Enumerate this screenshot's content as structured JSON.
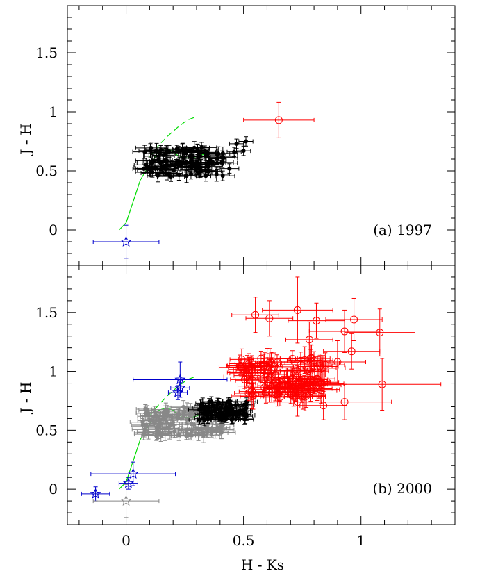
{
  "colors": {
    "black": "#000000",
    "red": "#ff0000",
    "blue": "#0000cc",
    "green": "#00dd00",
    "gray": "#888888"
  },
  "chart_data": [
    {
      "type": "scatter",
      "panel": "a",
      "annotation": "(a) 1997",
      "xlabel": "H - Ks",
      "ylabel": "J - H",
      "xlim": [
        -0.25,
        1.4
      ],
      "ylim": [
        -0.3,
        1.9
      ],
      "x_ticks": [
        "0",
        "0.5",
        "1"
      ],
      "y_ticks": [
        "0",
        "0.5",
        "1",
        "1.5"
      ],
      "series": [
        {
          "marker": "filled-circle",
          "color": "black",
          "cluster": {
            "count": 110,
            "x_range": [
              0.07,
              0.42
            ],
            "y_range": [
              0.45,
              0.7
            ],
            "xerr": 0.06,
            "yerr": 0.05
          },
          "points": [
            {
              "x": 0.44,
              "y": 0.52,
              "xerr": 0.04,
              "yerr": 0.04
            },
            {
              "x": 0.46,
              "y": 0.66,
              "xerr": 0.03,
              "yerr": 0.04
            },
            {
              "x": 0.47,
              "y": 0.73,
              "xerr": 0.03,
              "yerr": 0.04
            },
            {
              "x": 0.5,
              "y": 0.67,
              "xerr": 0.03,
              "yerr": 0.04
            },
            {
              "x": 0.51,
              "y": 0.75,
              "xerr": 0.03,
              "yerr": 0.04
            },
            {
              "x": 0.32,
              "y": 0.5,
              "xerr": 0.05,
              "yerr": 0.05
            }
          ]
        },
        {
          "marker": "open-circle",
          "color": "red",
          "points": [
            {
              "x": 0.65,
              "y": 0.93,
              "xerr": 0.15,
              "yerr": 0.15
            }
          ]
        },
        {
          "marker": "open-star",
          "color": "blue",
          "points": [
            {
              "x": 0.0,
              "y": -0.1,
              "xerr": 0.14,
              "yerr": 0.14
            }
          ]
        }
      ],
      "curves": [
        {
          "style": "solid",
          "color": "green",
          "x": [
            -0.03,
            0.0,
            0.02,
            0.04,
            0.06,
            0.09,
            0.12,
            0.14,
            0.17,
            0.2,
            0.22,
            0.25,
            0.28,
            0.3,
            0.33
          ],
          "y": [
            0.0,
            0.06,
            0.18,
            0.3,
            0.42,
            0.52,
            0.61,
            0.67,
            0.69,
            0.67,
            0.63,
            0.61,
            0.61,
            0.62,
            0.64
          ]
        },
        {
          "style": "dashed",
          "color": "green",
          "x": [
            0.1,
            0.14,
            0.18,
            0.22,
            0.26,
            0.3
          ],
          "y": [
            0.62,
            0.72,
            0.8,
            0.87,
            0.93,
            0.96
          ]
        }
      ]
    },
    {
      "type": "scatter",
      "panel": "b",
      "annotation": "(b) 2000",
      "xlabel": "H - Ks",
      "ylabel": "J - H",
      "xlim": [
        -0.25,
        1.4
      ],
      "ylim": [
        -0.3,
        1.9
      ],
      "x_ticks": [
        "0",
        "0.5",
        "1"
      ],
      "y_ticks": [
        "0",
        "0.5",
        "1",
        "1.5"
      ],
      "series": [
        {
          "marker": "filled-circle",
          "color": "gray",
          "cluster": {
            "count": 110,
            "x_range": [
              0.07,
              0.42
            ],
            "y_range": [
              0.45,
              0.7
            ],
            "xerr": 0.06,
            "yerr": 0.05
          },
          "points": []
        },
        {
          "marker": "filled-circle",
          "color": "black",
          "cluster": {
            "count": 80,
            "x_range": [
              0.31,
              0.52
            ],
            "y_range": [
              0.58,
              0.75
            ],
            "xerr": 0.04,
            "yerr": 0.04
          },
          "points": []
        },
        {
          "marker": "open-circle",
          "color": "red",
          "cluster": {
            "count": 110,
            "x_range": [
              0.47,
              0.85
            ],
            "y_range": [
              0.78,
              1.12
            ],
            "xerr": 0.08,
            "yerr": 0.1
          },
          "points": [
            {
              "x": 0.55,
              "y": 1.48,
              "xerr": 0.1,
              "yerr": 0.15
            },
            {
              "x": 0.61,
              "y": 1.45,
              "xerr": 0.1,
              "yerr": 0.15
            },
            {
              "x": 0.73,
              "y": 1.52,
              "xerr": 0.15,
              "yerr": 0.28
            },
            {
              "x": 0.81,
              "y": 1.43,
              "xerr": 0.12,
              "yerr": 0.15
            },
            {
              "x": 0.97,
              "y": 1.44,
              "xerr": 0.12,
              "yerr": 0.18
            },
            {
              "x": 0.78,
              "y": 1.27,
              "xerr": 0.1,
              "yerr": 0.15
            },
            {
              "x": 0.93,
              "y": 1.34,
              "xerr": 0.15,
              "yerr": 0.18
            },
            {
              "x": 1.08,
              "y": 1.33,
              "xerr": 0.15,
              "yerr": 0.2
            },
            {
              "x": 0.96,
              "y": 1.17,
              "xerr": 0.12,
              "yerr": 0.15
            },
            {
              "x": 1.09,
              "y": 0.89,
              "xerr": 0.25,
              "yerr": 0.22
            },
            {
              "x": 0.93,
              "y": 0.74,
              "xerr": 0.2,
              "yerr": 0.15
            },
            {
              "x": 0.84,
              "y": 0.71,
              "xerr": 0.1,
              "yerr": 0.12
            },
            {
              "x": 0.73,
              "y": 0.74,
              "xerr": 0.1,
              "yerr": 0.12
            },
            {
              "x": 0.9,
              "y": 1.08,
              "xerr": 0.12,
              "yerr": 0.18
            }
          ]
        },
        {
          "marker": "open-star",
          "color": "blue",
          "points": [
            {
              "x": -0.13,
              "y": -0.04,
              "xerr": 0.06,
              "yerr": 0.06
            },
            {
              "x": 0.01,
              "y": 0.05,
              "xerr": 0.04,
              "yerr": 0.05
            },
            {
              "x": 0.03,
              "y": 0.13,
              "xerr": 0.18,
              "yerr": 0.1
            },
            {
              "x": 0.22,
              "y": 0.82,
              "xerr": 0.04,
              "yerr": 0.06
            },
            {
              "x": 0.23,
              "y": 0.86,
              "xerr": 0.04,
              "yerr": 0.06
            },
            {
              "x": 0.23,
              "y": 0.93,
              "xerr": 0.2,
              "yerr": 0.15
            }
          ]
        },
        {
          "marker": "open-star",
          "color": "gray",
          "points": [
            {
              "x": 0.0,
              "y": -0.1,
              "xerr": 0.14,
              "yerr": 0.14
            }
          ]
        }
      ],
      "curves": [
        {
          "style": "solid",
          "color": "green",
          "x": [
            -0.03,
            0.0,
            0.02,
            0.04,
            0.06,
            0.09,
            0.12,
            0.14,
            0.17,
            0.2,
            0.22,
            0.25,
            0.28,
            0.3,
            0.33
          ],
          "y": [
            0.0,
            0.06,
            0.18,
            0.3,
            0.42,
            0.52,
            0.61,
            0.67,
            0.69,
            0.67,
            0.63,
            0.61,
            0.61,
            0.62,
            0.64
          ]
        },
        {
          "style": "dashed",
          "color": "green",
          "x": [
            0.1,
            0.14,
            0.18,
            0.22,
            0.26,
            0.3
          ],
          "y": [
            0.62,
            0.72,
            0.8,
            0.87,
            0.93,
            0.96
          ]
        }
      ]
    }
  ]
}
